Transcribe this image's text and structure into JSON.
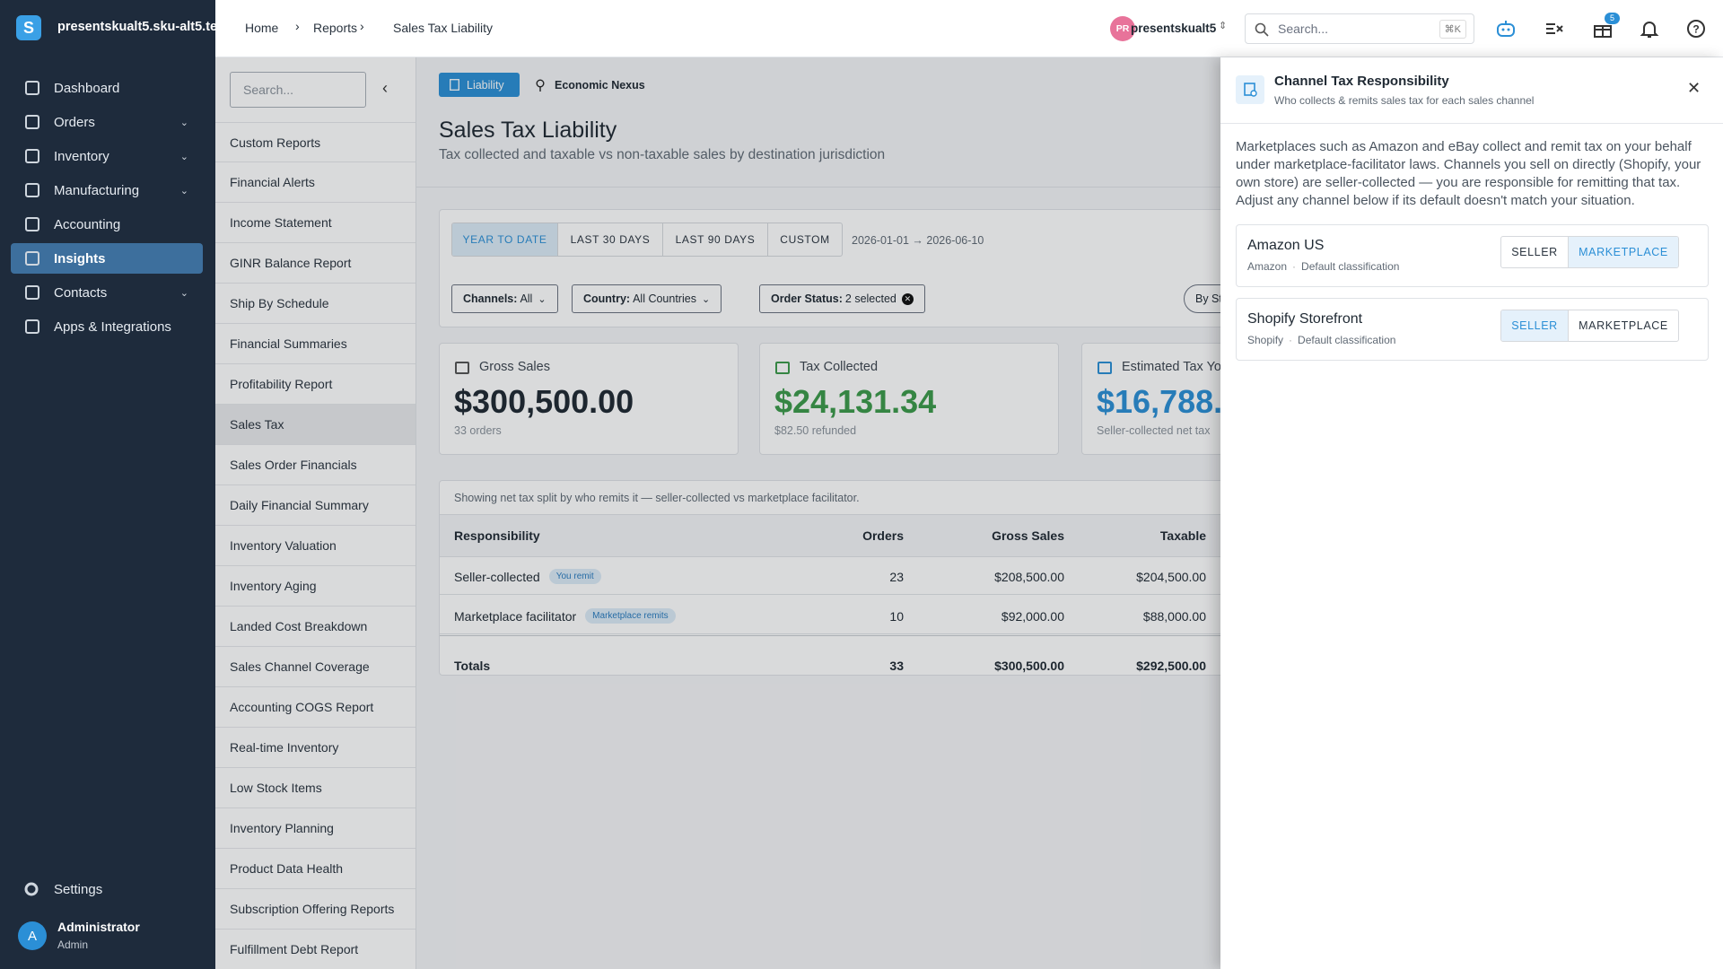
{
  "sidebar": {
    "org": "presentskualt5.sku-alt5.te",
    "nav": [
      "Dashboard",
      "Orders",
      "Inventory",
      "Manufacturing",
      "Accounting",
      "Insights",
      "Contacts",
      "Apps & Integrations"
    ],
    "settings": "Settings",
    "user": {
      "initial": "A",
      "name": "Administrator",
      "role": "Admin"
    }
  },
  "topbar": {
    "breadcrumbs": [
      "Home",
      "Reports",
      "Sales Tax Liability"
    ],
    "user_initials": "PR",
    "user_name": "presentskualt5",
    "search_placeholder": "Search...",
    "shortcut": "⌘K",
    "badge": 5
  },
  "reports": {
    "search_placeholder": "Search...",
    "items": [
      "Custom Reports",
      "Financial Alerts",
      "Income Statement",
      "GINR Balance Report",
      "Ship By Schedule",
      "Financial Summaries",
      "Profitability Report",
      "Sales Tax",
      "Sales Order Financials",
      "Daily Financial Summary",
      "Inventory Valuation",
      "Inventory Aging",
      "Landed Cost Breakdown",
      "Sales Channel Coverage",
      "Accounting COGS Report",
      "Real-time Inventory",
      "Low Stock Items",
      "Inventory Planning",
      "Product Data Health",
      "Subscription Offering Reports",
      "Fulfillment Debt Report"
    ]
  },
  "main": {
    "tabs": [
      "Liability",
      "Economic Nexus"
    ],
    "title": "Sales Tax Liability",
    "subtitle": "Tax collected and taxable vs non-taxable sales by destination jurisdiction",
    "ranges": [
      "YEAR TO DATE",
      "LAST 30 DAYS",
      "LAST 90 DAYS",
      "CUSTOM"
    ],
    "date_range": "2026-01-01 → 2026-06-10",
    "filters": [
      {
        "label": "Channels:",
        "value": "All"
      },
      {
        "label": "Country:",
        "value": "All Countries"
      },
      {
        "label": "Order Status:",
        "value": "2 selected"
      }
    ],
    "group_by": "By State",
    "cards": [
      {
        "label": "Gross Sales",
        "value": "$300,500.00",
        "note": "33 orders"
      },
      {
        "label": "Tax Collected",
        "value": "$24,131.34",
        "note": "$82.50 refunded"
      },
      {
        "label": "Estimated Tax Yo",
        "value": "$16,788.",
        "note": "Seller-collected net tax"
      }
    ],
    "table": {
      "note": "Showing net tax split by who remits it — seller-collected vs marketplace facilitator.",
      "columns": [
        "Responsibility",
        "Orders",
        "Gross Sales",
        "Taxable"
      ],
      "rows": [
        {
          "name": "Seller-collected",
          "tag": "You remit",
          "cells": [
            23,
            "$208,500.00",
            "$204,500.00"
          ]
        },
        {
          "name": "Marketplace facilitator",
          "tag": "Marketplace remits",
          "cells": [
            10,
            "$92,000.00",
            "$88,000.00"
          ]
        }
      ],
      "totals": {
        "name": "Totals",
        "cells": [
          33,
          "$300,500.00",
          "$292,500.00"
        ]
      }
    }
  },
  "panel": {
    "title": "Channel Tax Responsibility",
    "subtitle": "Who collects & remits sales tax for each sales channel",
    "description": "Marketplaces such as Amazon and eBay collect and remit tax on your behalf under marketplace-facilitator laws. Channels you sell on directly (Shopify, your own store) are seller-collected — you are responsible for remitting that tax. Adjust any channel below if its default doesn't match your situation.",
    "channels": [
      {
        "name": "Amazon US",
        "platform": "Amazon",
        "classification": "Default classification",
        "options": [
          "SELLER",
          "MARKETPLACE"
        ],
        "selected": "MARKETPLACE"
      },
      {
        "name": "Shopify Storefront",
        "platform": "Shopify",
        "classification": "Default classification",
        "options": [
          "SELLER",
          "MARKETPLACE"
        ],
        "selected": "SELLER"
      }
    ]
  }
}
